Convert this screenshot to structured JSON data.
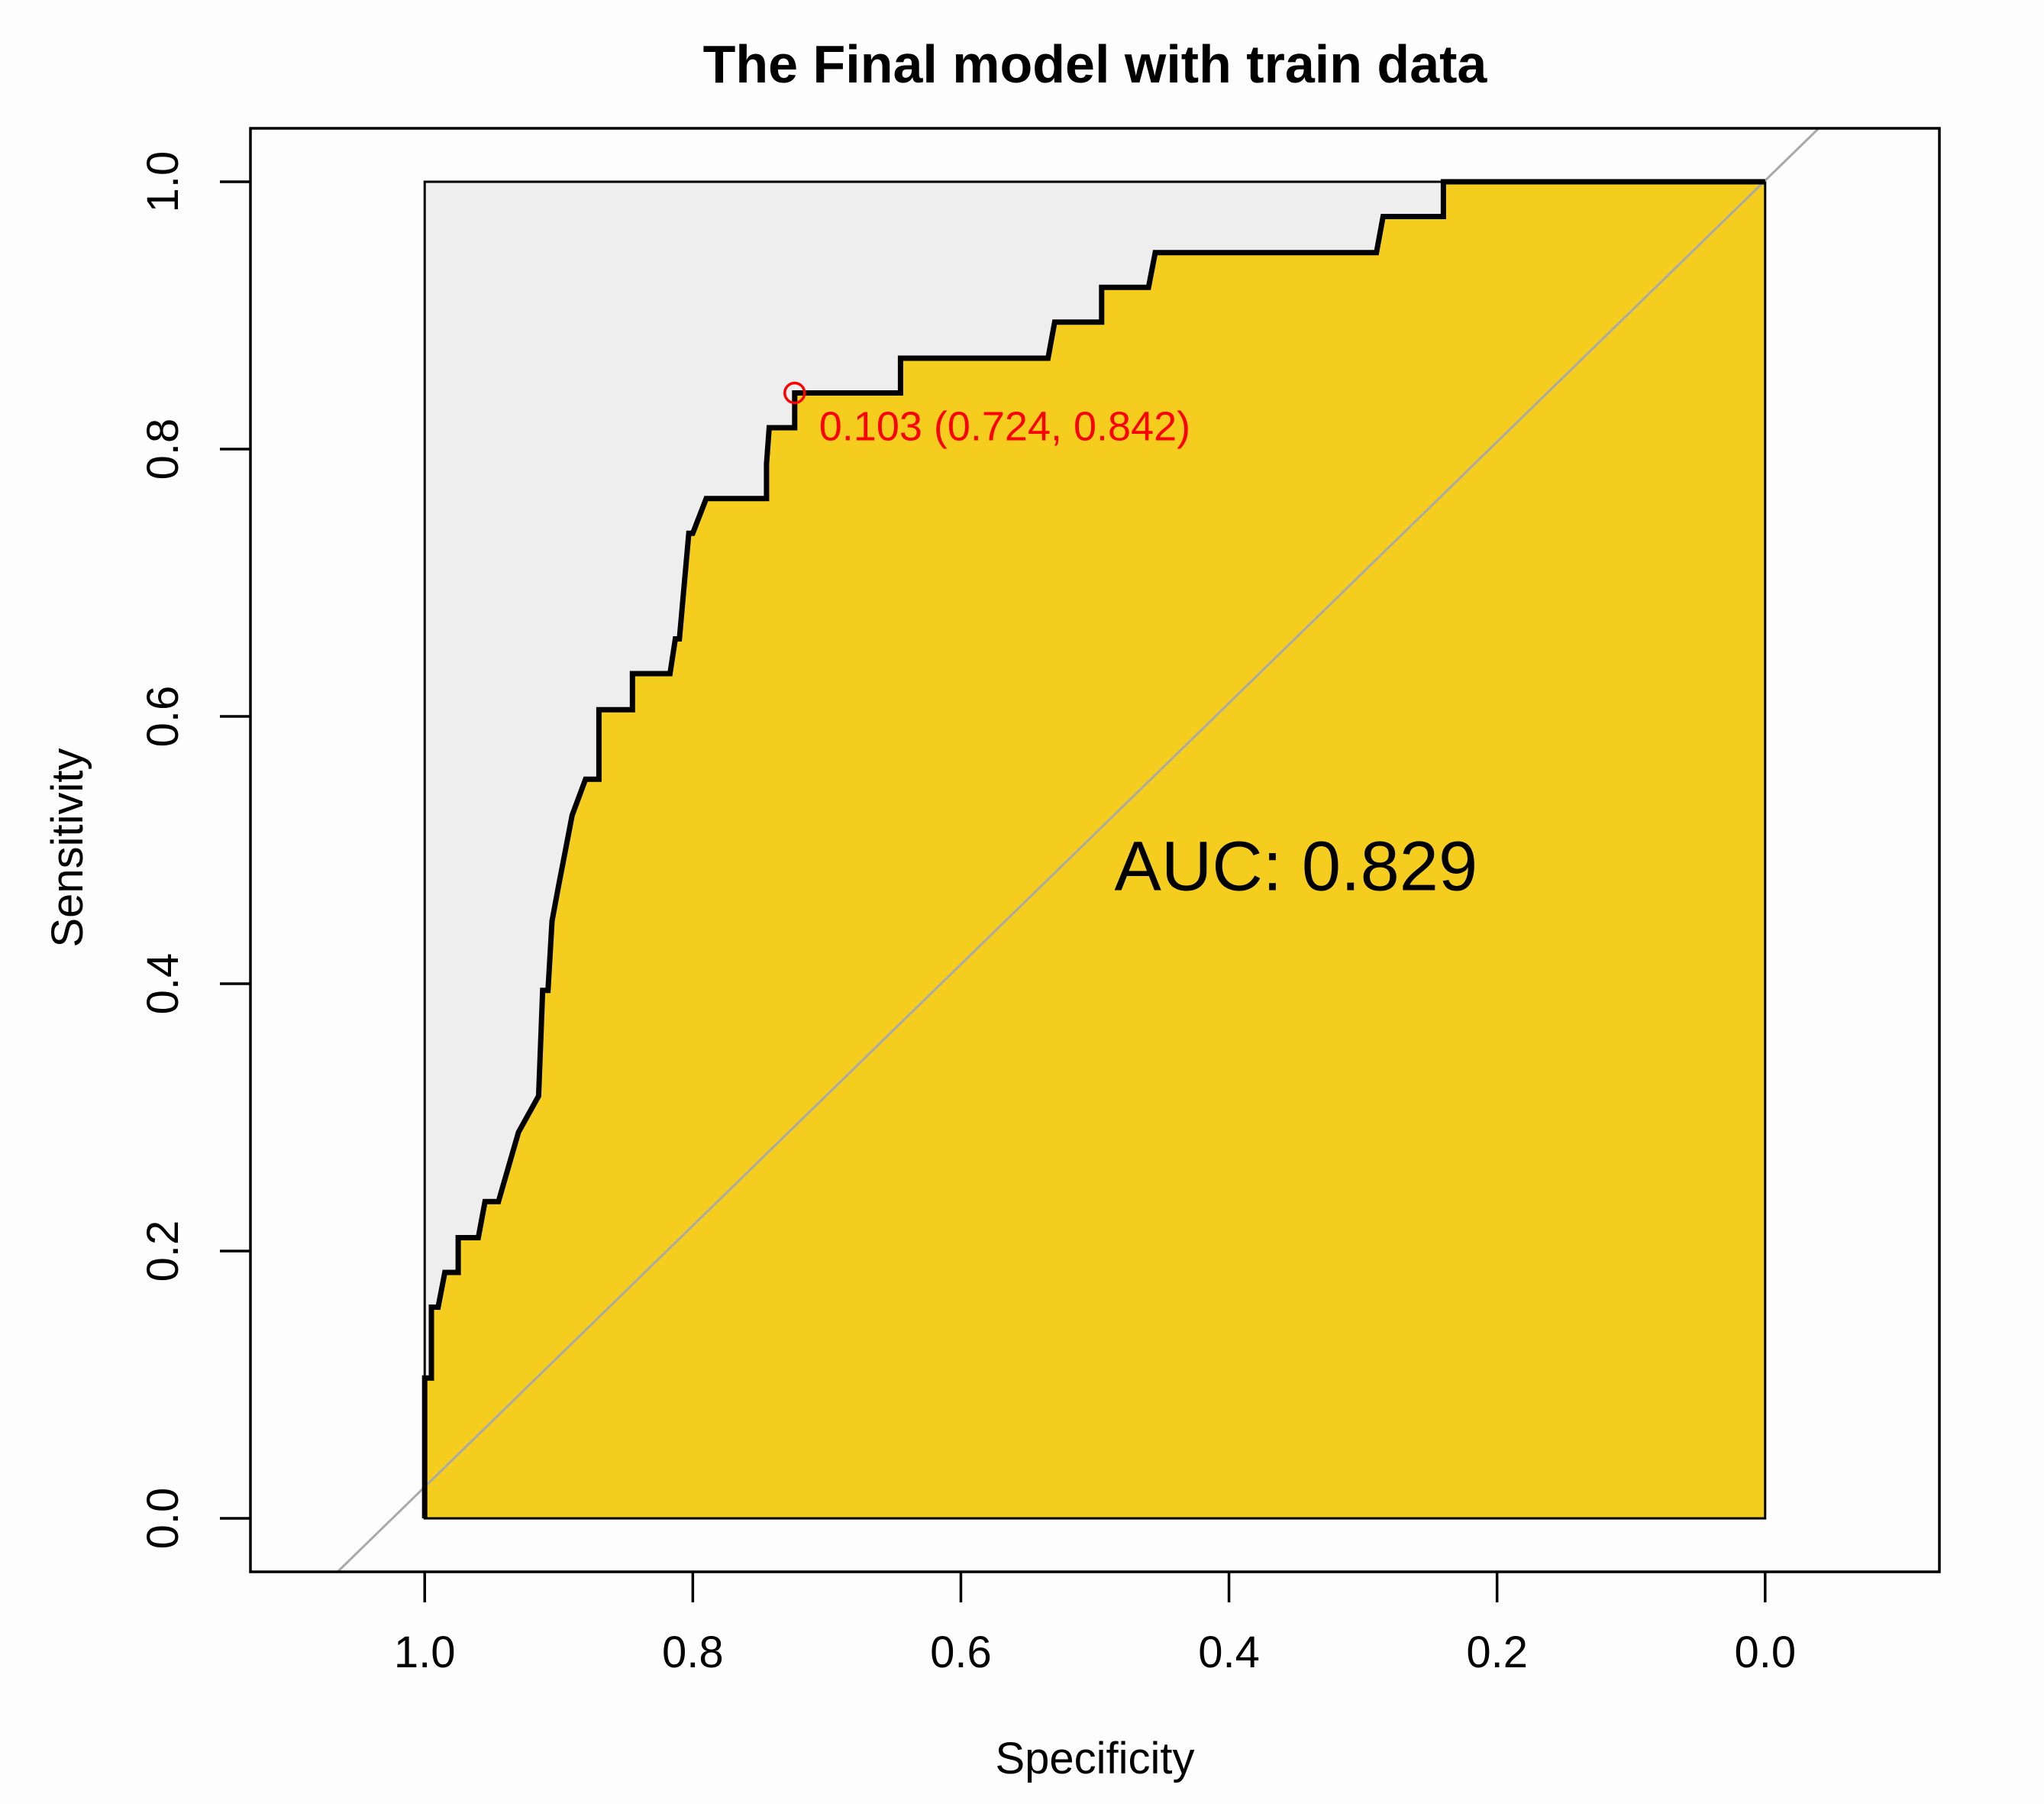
{
  "chart_data": {
    "type": "line",
    "title": "The Final model with train data",
    "xlabel": "Specificity",
    "ylabel": "Sensitivity",
    "x_reversed": true,
    "xlim": [
      1.13,
      -0.13
    ],
    "ylim": [
      -0.04,
      1.04
    ],
    "xticks": [
      1.0,
      0.8,
      0.6,
      0.4,
      0.2,
      0.0
    ],
    "xtick_labels": [
      "1.0",
      "0.8",
      "0.6",
      "0.4",
      "0.2",
      "0.0"
    ],
    "yticks": [
      0.0,
      0.2,
      0.4,
      0.6,
      0.8,
      1.0
    ],
    "ytick_labels": [
      "0.0",
      "0.2",
      "0.4",
      "0.6",
      "0.8",
      "1.0"
    ],
    "series": [
      {
        "x": [
          1.0,
          1.0,
          0.995,
          0.995,
          0.99,
          0.985,
          0.975,
          0.975,
          0.96,
          0.955,
          0.945,
          0.93,
          0.93,
          0.915,
          0.915,
          0.912,
          0.908,
          0.905,
          0.9,
          0.895,
          0.89,
          0.88,
          0.87,
          0.87,
          0.845,
          0.845,
          0.817,
          0.813,
          0.81,
          0.803,
          0.8,
          0.79,
          0.79,
          0.745,
          0.745,
          0.743,
          0.724,
          0.724,
          0.645,
          0.645,
          0.535,
          0.53,
          0.495,
          0.495,
          0.46,
          0.455,
          0.45,
          0.29,
          0.285,
          0.24,
          0.24,
          0.0
        ],
        "y": [
          0.0,
          0.105,
          0.105,
          0.158,
          0.158,
          0.184,
          0.184,
          0.21,
          0.21,
          0.237,
          0.237,
          0.289,
          0.289,
          0.316,
          0.316,
          0.395,
          0.395,
          0.447,
          0.474,
          0.5,
          0.526,
          0.553,
          0.553,
          0.605,
          0.605,
          0.632,
          0.632,
          0.658,
          0.658,
          0.737,
          0.737,
          0.763,
          0.763,
          0.763,
          0.789,
          0.816,
          0.816,
          0.842,
          0.842,
          0.868,
          0.868,
          0.895,
          0.895,
          0.921,
          0.921,
          0.947,
          0.947,
          0.947,
          0.974,
          0.974,
          1.0,
          1.0
        ]
      }
    ],
    "auc_label": "AUC: 0.829",
    "threshold_point": {
      "specificity": 0.724,
      "sensitivity": 0.842
    },
    "threshold_label": "0.103 (0.724, 0.842)",
    "grid": false,
    "colors": {
      "auc_fill": "#F5CD1E",
      "upper_fill": "#EEEEEE",
      "roc_line": "#000000",
      "diagonal": "#A9A9A9",
      "threshold": "#FF0000"
    }
  }
}
